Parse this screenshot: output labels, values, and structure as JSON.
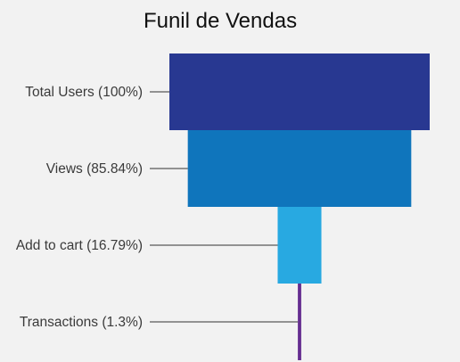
{
  "chart_data": {
    "type": "funnel",
    "title": "Funil de Vendas",
    "stages": [
      {
        "label": "Total Users (100%)",
        "value": 100,
        "color": "#283891"
      },
      {
        "label": "Views (85.84%)",
        "value": 85.84,
        "color": "#0f75bc"
      },
      {
        "label": "Add to cart (16.79%)",
        "value": 16.79,
        "color": "#28a9e1"
      },
      {
        "label": "Transactions (1.3%)",
        "value": 1.3,
        "color": "#652d90"
      }
    ],
    "legend": "none",
    "grid": false
  }
}
